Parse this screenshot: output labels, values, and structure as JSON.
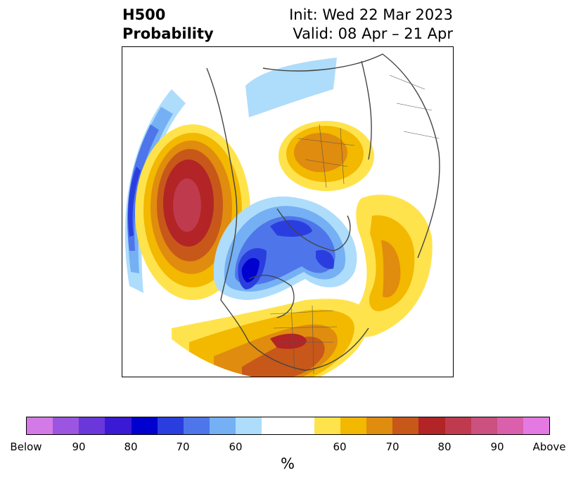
{
  "title": {
    "left_line1": "H500",
    "left_line2": "Probability",
    "right_line1": "Init: Wed 22 Mar 2023",
    "right_line2": "Valid: 08 Apr – 21 Apr"
  },
  "map": {
    "projection": "north-polar stereographic",
    "anomalies": [
      {
        "region": "northeast-pacific",
        "sign": "above",
        "peak_percent": 85
      },
      {
        "region": "scandinavia-russia",
        "sign": "above",
        "peak_percent": 70
      },
      {
        "region": "eastern-united-states",
        "sign": "above",
        "peak_percent": 80
      },
      {
        "region": "north-atlantic-europe",
        "sign": "above",
        "peak_percent": 70
      },
      {
        "region": "arctic-canada",
        "sign": "below",
        "peak_percent": 80
      },
      {
        "region": "north-atlantic-greenland",
        "sign": "below",
        "peak_percent": 75
      },
      {
        "region": "siberia",
        "sign": "below",
        "peak_percent": 60
      },
      {
        "region": "western-pacific",
        "sign": "below",
        "peak_percent": 75
      }
    ]
  },
  "colorbar": {
    "colors": [
      "#d47ae6",
      "#9b55e0",
      "#6a38da",
      "#3a1ad5",
      "#0000cf",
      "#2a3ee0",
      "#4e76ea",
      "#74b0f3",
      "#aedcfb",
      "#ffffff",
      "#ffffff",
      "#ffe34c",
      "#f3b800",
      "#e08c0e",
      "#c7581a",
      "#b22426",
      "#c03a4e",
      "#cc5080",
      "#da60ab",
      "#e579e2"
    ],
    "tick_labels": [
      "Below",
      "90",
      "80",
      "70",
      "60",
      "60",
      "70",
      "80",
      "90",
      "Above"
    ],
    "label": "%"
  }
}
